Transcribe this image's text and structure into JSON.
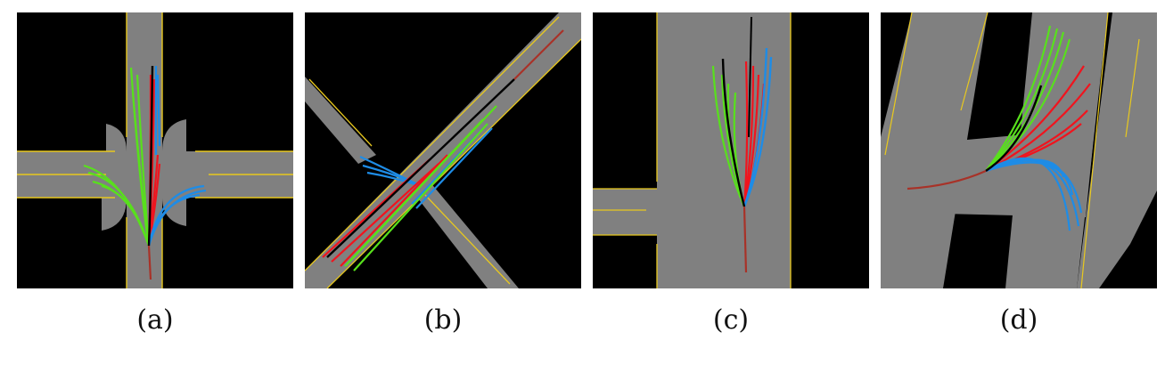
{
  "panels": [
    {
      "id": "a",
      "caption": "(a)"
    },
    {
      "id": "b",
      "caption": "(b)"
    },
    {
      "id": "c",
      "caption": "(c)"
    },
    {
      "id": "d",
      "caption": "(d)"
    }
  ],
  "colors": {
    "road": "#808080",
    "lane_line": "#e8c81e",
    "background": "#000000",
    "green": "#58e01c",
    "red": "#f0141e",
    "blue": "#1e8ce6",
    "history": "#a83228",
    "ground_truth": "#000000"
  }
}
